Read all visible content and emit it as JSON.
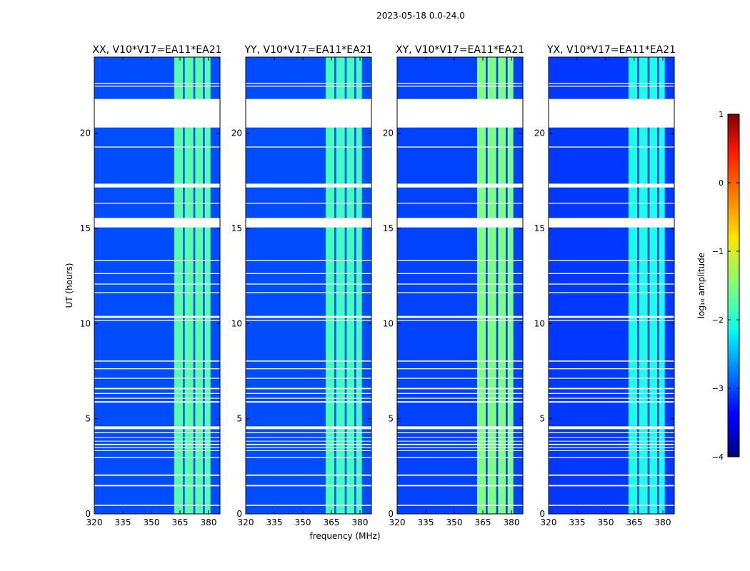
{
  "figure": {
    "suptitle": "2023-05-18 0.0-24.0",
    "xlabel": "frequency (MHz)",
    "ylabel": "UT (hours)"
  },
  "colorbar": {
    "label": "log₁₀ amplitude",
    "range": [
      -4,
      1
    ],
    "ticks": [
      "1",
      "0",
      "−1",
      "−2",
      "−3",
      "−4"
    ],
    "tick_values": [
      1,
      0,
      -1,
      -2,
      -3,
      -4
    ],
    "colormap": "jet"
  },
  "chart_data": {
    "type": "heatmap",
    "x_range_mhz": [
      320,
      386
    ],
    "y_range_hours": [
      0,
      24
    ],
    "xticks": [
      320,
      335,
      350,
      365,
      380
    ],
    "yticks": [
      0,
      5,
      10,
      15,
      20
    ],
    "rfi_band_mhz": [
      362,
      381
    ],
    "rfi_subbands_mhz": [
      [
        362,
        366.5
      ],
      [
        367.5,
        372
      ],
      [
        373,
        377
      ],
      [
        378,
        381
      ]
    ],
    "gaps_hours": [
      [
        0.42,
        0.48
      ],
      [
        1.45,
        1.52
      ],
      [
        2.0,
        2.07
      ],
      [
        2.95,
        3.0
      ],
      [
        3.3,
        3.34
      ],
      [
        3.45,
        3.5
      ],
      [
        3.62,
        3.68
      ],
      [
        3.8,
        3.84
      ],
      [
        4.0,
        4.04
      ],
      [
        4.25,
        4.3
      ],
      [
        4.45,
        4.6
      ],
      [
        5.85,
        5.92
      ],
      [
        6.05,
        6.1
      ],
      [
        6.3,
        6.35
      ],
      [
        6.55,
        6.62
      ],
      [
        7.1,
        7.15
      ],
      [
        7.6,
        7.65
      ],
      [
        8.0,
        8.06
      ],
      [
        10.15,
        10.2
      ],
      [
        10.3,
        10.4
      ],
      [
        11.6,
        11.65
      ],
      [
        12.05,
        12.1
      ],
      [
        12.6,
        12.65
      ],
      [
        13.3,
        13.35
      ],
      [
        15.05,
        15.55
      ],
      [
        16.3,
        16.35
      ],
      [
        17.15,
        17.35
      ],
      [
        19.25,
        19.3
      ],
      [
        20.3,
        21.8
      ],
      [
        22.45,
        22.5
      ],
      [
        22.6,
        22.65
      ]
    ],
    "panels": [
      {
        "title": "XX, V10*V17=EA11*EA21",
        "base_level": -3.0,
        "rfi_level": -1.7
      },
      {
        "title": "YY, V10*V17=EA11*EA21",
        "base_level": -3.0,
        "rfi_level": -1.8
      },
      {
        "title": "XY, V10*V17=EA11*EA21",
        "base_level": -3.05,
        "rfi_level": -1.5
      },
      {
        "title": "YX, V10*V17=EA11*EA21",
        "base_level": -3.1,
        "rfi_level": -2.0
      }
    ]
  }
}
